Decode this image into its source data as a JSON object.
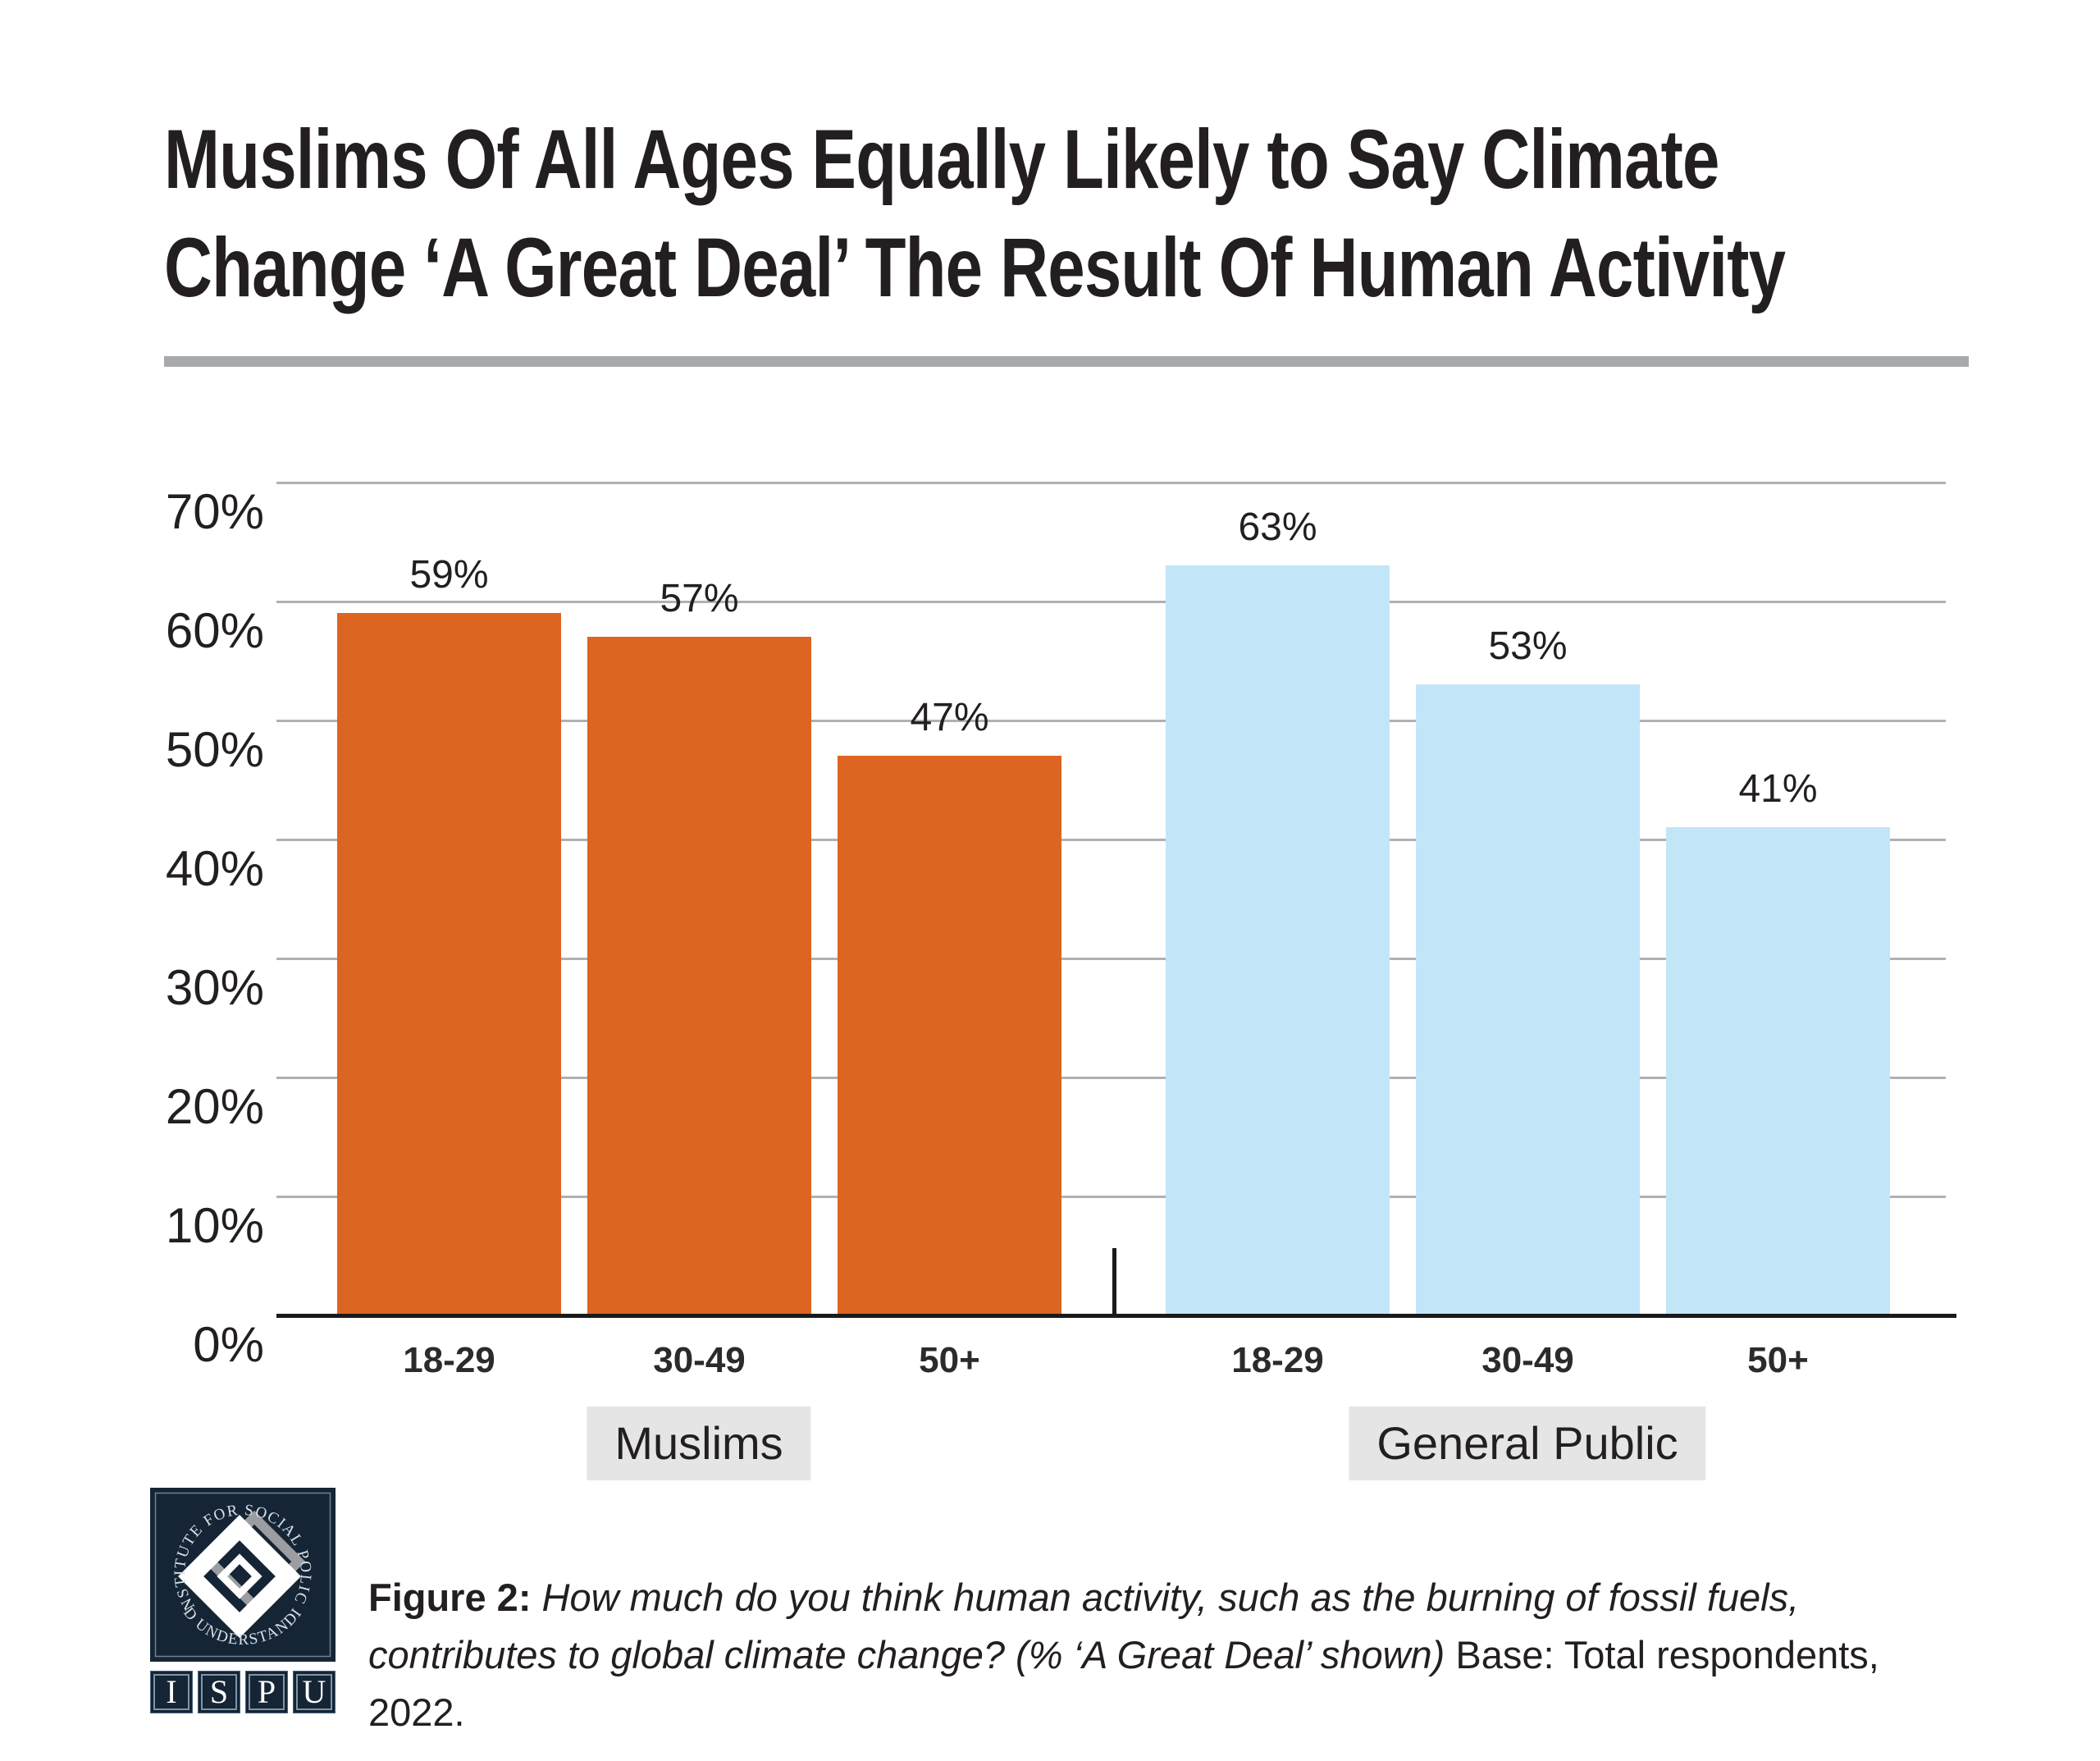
{
  "title": {
    "line1": "Muslims Of All Ages Equally Likely to Say Climate",
    "line2": "Change ‘A Great Deal’ The Result Of Human Activity"
  },
  "chart_data": {
    "type": "bar",
    "title": "Muslims Of All Ages Equally Likely to Say Climate Change ‘A Great Deal’ The Result Of Human Activity",
    "xlabel": "",
    "ylabel": "",
    "ylim": [
      0,
      70
    ],
    "grid": true,
    "ytick_labels": [
      "0%",
      "10%",
      "20%",
      "30%",
      "40%",
      "50%",
      "60%",
      "70%"
    ],
    "value_suffix": "%",
    "categories": [
      "18-29",
      "30-49",
      "50+"
    ],
    "groups": [
      {
        "name": "Muslims",
        "color": "#DC6522",
        "categories": [
          "18-29",
          "30-49",
          "50+"
        ],
        "values": [
          59,
          57,
          47
        ]
      },
      {
        "name": "General Public",
        "color": "#C3E5F8",
        "categories": [
          "18-29",
          "30-49",
          "50+"
        ],
        "values": [
          63,
          53,
          41
        ]
      }
    ]
  },
  "caption": {
    "figure_label": "Figure 2:",
    "question": "How much do you think human activity, such as the burning of fossil fuels, contributes to global climate change? (% ‘A Great Deal’ shown)",
    "base": "Base: Total respondents, 2022."
  },
  "logo": {
    "circle_top": "INSTITUTE FOR SOCIAL POLICY",
    "circle_bottom": "AND UNDERSTANDING",
    "letters": [
      "I",
      "S",
      "P",
      "U"
    ]
  },
  "colors": {
    "muslims_bar": "#DC6522",
    "general_public_bar": "#C3E5F8",
    "text_dark": "#231F20",
    "gridline": "#AFB1B3",
    "title_rule": "#A7A9AC",
    "group_label_bg": "#E5E5E6",
    "logo_navy": "#152535"
  }
}
